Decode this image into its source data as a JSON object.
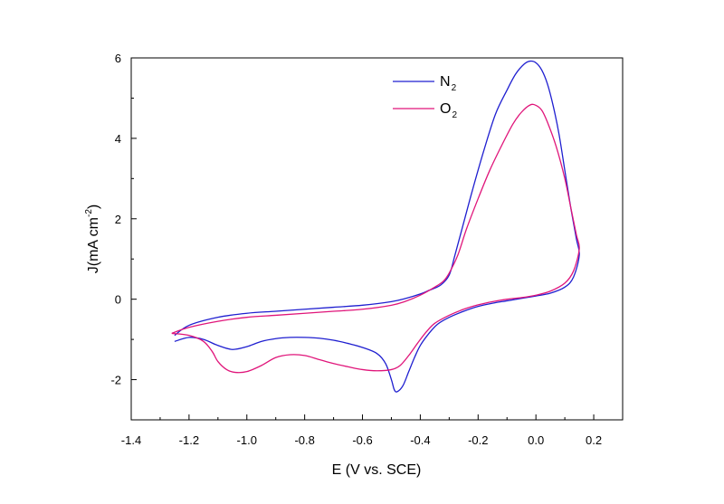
{
  "chart_data": {
    "type": "line",
    "title": "",
    "xlabel": "E (V vs. SCE)",
    "ylabel": {
      "main": "J(mA cm",
      "sup": "-2",
      "close": ")"
    },
    "xlim": [
      -1.4,
      0.3
    ],
    "ylim": [
      -3,
      6
    ],
    "x_ticks": [
      {
        "value": -1.4,
        "label": "-1.4"
      },
      {
        "value": -1.2,
        "label": "-1.2"
      },
      {
        "value": -1.0,
        "label": "-1.0"
      },
      {
        "value": -0.8,
        "label": "-0.8"
      },
      {
        "value": -0.6,
        "label": "-0.6"
      },
      {
        "value": -0.4,
        "label": "-0.4"
      },
      {
        "value": -0.2,
        "label": "-0.2"
      },
      {
        "value": 0.0,
        "label": "0.0"
      },
      {
        "value": 0.2,
        "label": "0.2"
      }
    ],
    "y_ticks": [
      {
        "value": -2,
        "label": "-2"
      },
      {
        "value": 0,
        "label": "0"
      },
      {
        "value": 2,
        "label": "2"
      },
      {
        "value": 4,
        "label": "4"
      },
      {
        "value": 6,
        "label": "6"
      }
    ],
    "grid": false,
    "legend_position": "top-center",
    "series": [
      {
        "name": "N",
        "sub": "2",
        "color": "#1f1fd0",
        "points": [
          [
            -1.25,
            -1.05
          ],
          [
            -1.2,
            -0.95
          ],
          [
            -1.15,
            -1.0
          ],
          [
            -1.1,
            -1.15
          ],
          [
            -1.05,
            -1.25
          ],
          [
            -1.0,
            -1.18
          ],
          [
            -0.95,
            -1.05
          ],
          [
            -0.9,
            -0.98
          ],
          [
            -0.85,
            -0.95
          ],
          [
            -0.8,
            -0.95
          ],
          [
            -0.75,
            -0.97
          ],
          [
            -0.7,
            -1.02
          ],
          [
            -0.65,
            -1.1
          ],
          [
            -0.6,
            -1.2
          ],
          [
            -0.55,
            -1.35
          ],
          [
            -0.52,
            -1.6
          ],
          [
            -0.5,
            -2.0
          ],
          [
            -0.49,
            -2.25
          ],
          [
            -0.48,
            -2.3
          ],
          [
            -0.46,
            -2.15
          ],
          [
            -0.44,
            -1.8
          ],
          [
            -0.42,
            -1.45
          ],
          [
            -0.4,
            -1.15
          ],
          [
            -0.37,
            -0.85
          ],
          [
            -0.34,
            -0.62
          ],
          [
            -0.3,
            -0.45
          ],
          [
            -0.25,
            -0.3
          ],
          [
            -0.2,
            -0.18
          ],
          [
            -0.15,
            -0.1
          ],
          [
            -0.1,
            -0.04
          ],
          [
            -0.05,
            0.02
          ],
          [
            0.0,
            0.08
          ],
          [
            0.05,
            0.15
          ],
          [
            0.1,
            0.3
          ],
          [
            0.13,
            0.55
          ],
          [
            0.15,
            1.1
          ],
          [
            0.14,
            1.5
          ],
          [
            0.12,
            2.3
          ],
          [
            0.1,
            3.2
          ],
          [
            0.08,
            4.1
          ],
          [
            0.06,
            4.8
          ],
          [
            0.04,
            5.35
          ],
          [
            0.02,
            5.7
          ],
          [
            0.0,
            5.88
          ],
          [
            -0.02,
            5.92
          ],
          [
            -0.04,
            5.85
          ],
          [
            -0.07,
            5.6
          ],
          [
            -0.1,
            5.2
          ],
          [
            -0.14,
            4.6
          ],
          [
            -0.18,
            3.7
          ],
          [
            -0.22,
            2.7
          ],
          [
            -0.25,
            1.9
          ],
          [
            -0.28,
            1.1
          ],
          [
            -0.3,
            0.6
          ],
          [
            -0.33,
            0.35
          ],
          [
            -0.37,
            0.22
          ],
          [
            -0.4,
            0.13
          ],
          [
            -0.45,
            0.02
          ],
          [
            -0.5,
            -0.06
          ],
          [
            -0.6,
            -0.15
          ],
          [
            -0.7,
            -0.2
          ],
          [
            -0.8,
            -0.25
          ],
          [
            -0.9,
            -0.3
          ],
          [
            -1.0,
            -0.35
          ],
          [
            -1.1,
            -0.45
          ],
          [
            -1.2,
            -0.65
          ],
          [
            -1.25,
            -0.9
          ]
        ]
      },
      {
        "name": "O",
        "sub": "2",
        "color": "#e0157a",
        "points": [
          [
            -1.26,
            -0.85
          ],
          [
            -1.2,
            -0.9
          ],
          [
            -1.15,
            -1.05
          ],
          [
            -1.12,
            -1.3
          ],
          [
            -1.1,
            -1.55
          ],
          [
            -1.07,
            -1.75
          ],
          [
            -1.04,
            -1.82
          ],
          [
            -1.0,
            -1.8
          ],
          [
            -0.95,
            -1.65
          ],
          [
            -0.9,
            -1.45
          ],
          [
            -0.85,
            -1.38
          ],
          [
            -0.8,
            -1.4
          ],
          [
            -0.75,
            -1.5
          ],
          [
            -0.7,
            -1.6
          ],
          [
            -0.65,
            -1.68
          ],
          [
            -0.6,
            -1.75
          ],
          [
            -0.55,
            -1.78
          ],
          [
            -0.5,
            -1.75
          ],
          [
            -0.47,
            -1.65
          ],
          [
            -0.44,
            -1.4
          ],
          [
            -0.41,
            -1.1
          ],
          [
            -0.38,
            -0.82
          ],
          [
            -0.35,
            -0.6
          ],
          [
            -0.3,
            -0.4
          ],
          [
            -0.25,
            -0.25
          ],
          [
            -0.2,
            -0.14
          ],
          [
            -0.15,
            -0.06
          ],
          [
            -0.1,
            0.0
          ],
          [
            -0.05,
            0.04
          ],
          [
            0.0,
            0.1
          ],
          [
            0.05,
            0.2
          ],
          [
            0.1,
            0.4
          ],
          [
            0.13,
            0.7
          ],
          [
            0.15,
            1.25
          ],
          [
            0.14,
            1.6
          ],
          [
            0.12,
            2.3
          ],
          [
            0.1,
            3.0
          ],
          [
            0.07,
            3.8
          ],
          [
            0.04,
            4.4
          ],
          [
            0.02,
            4.7
          ],
          [
            0.0,
            4.82
          ],
          [
            -0.02,
            4.83
          ],
          [
            -0.05,
            4.65
          ],
          [
            -0.08,
            4.35
          ],
          [
            -0.12,
            3.8
          ],
          [
            -0.16,
            3.2
          ],
          [
            -0.2,
            2.5
          ],
          [
            -0.24,
            1.75
          ],
          [
            -0.27,
            1.1
          ],
          [
            -0.3,
            0.65
          ],
          [
            -0.32,
            0.45
          ],
          [
            -0.35,
            0.3
          ],
          [
            -0.4,
            0.1
          ],
          [
            -0.45,
            -0.05
          ],
          [
            -0.5,
            -0.15
          ],
          [
            -0.6,
            -0.25
          ],
          [
            -0.7,
            -0.3
          ],
          [
            -0.8,
            -0.35
          ],
          [
            -0.9,
            -0.4
          ],
          [
            -1.0,
            -0.45
          ],
          [
            -1.1,
            -0.55
          ],
          [
            -1.2,
            -0.7
          ],
          [
            -1.26,
            -0.85
          ]
        ]
      }
    ]
  }
}
